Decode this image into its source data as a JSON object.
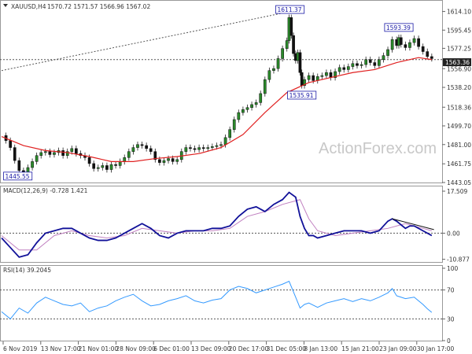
{
  "chart_data": {
    "type": "candlestick-with-indicators",
    "header": {
      "symbol": "XAUUSD,H4",
      "ohlc": "1570.72 1571.57 1566.96 1567.02"
    },
    "watermark": "ActionForex.com",
    "price_panel": {
      "ylim": [
        1443.05,
        1624.0
      ],
      "ticks": [
        1614.1,
        1595.45,
        1577.25,
        1556.9,
        1538.2,
        1518.36,
        1499.7,
        1481.0,
        1461.75,
        1443.05
      ],
      "current_price_label": "1563.36",
      "annotations": [
        {
          "label": "1611.37",
          "x": 0.657,
          "y": 1611.37
        },
        {
          "label": "1593.39",
          "x": 0.905,
          "y": 1593.39
        },
        {
          "label": "1535.91",
          "x": 0.684,
          "y": 1535.91
        },
        {
          "label": "1445.55",
          "x": 0.037,
          "y": 1445.55
        }
      ],
      "trendline": {
        "from": [
          0.0,
          1555.0
        ],
        "to": [
          0.657,
          1614.0
        ]
      },
      "horizontal_level": 1566.0,
      "close_series": [
        [
          0.0,
          1490
        ],
        [
          0.01,
          1485
        ],
        [
          0.02,
          1478
        ],
        [
          0.03,
          1465
        ],
        [
          0.04,
          1455
        ],
        [
          0.05,
          1450
        ],
        [
          0.06,
          1458
        ],
        [
          0.07,
          1464
        ],
        [
          0.08,
          1470
        ],
        [
          0.09,
          1473
        ],
        [
          0.1,
          1474
        ],
        [
          0.11,
          1471
        ],
        [
          0.12,
          1473
        ],
        [
          0.13,
          1475
        ],
        [
          0.14,
          1470
        ],
        [
          0.15,
          1474
        ],
        [
          0.16,
          1477
        ],
        [
          0.17,
          1472
        ],
        [
          0.18,
          1470
        ],
        [
          0.19,
          1468
        ],
        [
          0.2,
          1462
        ],
        [
          0.21,
          1457
        ],
        [
          0.22,
          1458
        ],
        [
          0.23,
          1460
        ],
        [
          0.24,
          1456
        ],
        [
          0.25,
          1461
        ],
        [
          0.26,
          1460
        ],
        [
          0.27,
          1464
        ],
        [
          0.28,
          1468
        ],
        [
          0.29,
          1474
        ],
        [
          0.3,
          1478
        ],
        [
          0.31,
          1481
        ],
        [
          0.32,
          1480
        ],
        [
          0.33,
          1477
        ],
        [
          0.34,
          1474
        ],
        [
          0.35,
          1466
        ],
        [
          0.36,
          1463
        ],
        [
          0.37,
          1465
        ],
        [
          0.38,
          1467
        ],
        [
          0.39,
          1464
        ],
        [
          0.4,
          1466
        ],
        [
          0.41,
          1474
        ],
        [
          0.42,
          1478
        ],
        [
          0.43,
          1477
        ],
        [
          0.44,
          1476
        ],
        [
          0.45,
          1478
        ],
        [
          0.46,
          1477
        ],
        [
          0.47,
          1478
        ],
        [
          0.48,
          1479
        ],
        [
          0.49,
          1480
        ],
        [
          0.5,
          1481
        ],
        [
          0.51,
          1488
        ],
        [
          0.52,
          1496
        ],
        [
          0.53,
          1506
        ],
        [
          0.54,
          1513
        ],
        [
          0.55,
          1516
        ],
        [
          0.56,
          1518
        ],
        [
          0.57,
          1521
        ],
        [
          0.58,
          1523
        ],
        [
          0.59,
          1532
        ],
        [
          0.6,
          1546
        ],
        [
          0.61,
          1555
        ],
        [
          0.62,
          1557
        ],
        [
          0.63,
          1567
        ],
        [
          0.64,
          1577
        ],
        [
          0.65,
          1585
        ],
        [
          0.655,
          1608
        ],
        [
          0.66,
          1590
        ],
        [
          0.665,
          1572
        ],
        [
          0.67,
          1565
        ],
        [
          0.675,
          1573
        ],
        [
          0.68,
          1553
        ],
        [
          0.684,
          1540
        ],
        [
          0.69,
          1546
        ],
        [
          0.7,
          1550
        ],
        [
          0.71,
          1545
        ],
        [
          0.72,
          1549
        ],
        [
          0.73,
          1550
        ],
        [
          0.74,
          1553
        ],
        [
          0.75,
          1548
        ],
        [
          0.76,
          1554
        ],
        [
          0.77,
          1558
        ],
        [
          0.78,
          1556
        ],
        [
          0.79,
          1559
        ],
        [
          0.8,
          1562
        ],
        [
          0.81,
          1560
        ],
        [
          0.82,
          1561
        ],
        [
          0.83,
          1566
        ],
        [
          0.84,
          1563
        ],
        [
          0.85,
          1560
        ],
        [
          0.86,
          1566
        ],
        [
          0.87,
          1570
        ],
        [
          0.88,
          1576
        ],
        [
          0.89,
          1586
        ],
        [
          0.9,
          1580
        ],
        [
          0.905,
          1588
        ],
        [
          0.91,
          1581
        ],
        [
          0.92,
          1578
        ],
        [
          0.93,
          1583
        ],
        [
          0.94,
          1587
        ],
        [
          0.95,
          1579
        ],
        [
          0.96,
          1574
        ],
        [
          0.97,
          1569
        ],
        [
          0.98,
          1567
        ]
      ],
      "sma_series": [
        [
          0.0,
          1489
        ],
        [
          0.05,
          1480
        ],
        [
          0.1,
          1475
        ],
        [
          0.15,
          1473
        ],
        [
          0.2,
          1469
        ],
        [
          0.25,
          1464
        ],
        [
          0.3,
          1464
        ],
        [
          0.35,
          1467
        ],
        [
          0.4,
          1469
        ],
        [
          0.45,
          1472
        ],
        [
          0.5,
          1478
        ],
        [
          0.55,
          1491
        ],
        [
          0.6,
          1513
        ],
        [
          0.65,
          1533
        ],
        [
          0.7,
          1543
        ],
        [
          0.75,
          1548
        ],
        [
          0.8,
          1553
        ],
        [
          0.85,
          1556
        ],
        [
          0.9,
          1563
        ],
        [
          0.95,
          1568
        ],
        [
          0.98,
          1566
        ]
      ]
    },
    "macd_panel": {
      "label": "MACD(12,26,9) -0.728 1.421",
      "ylim": [
        -12.0,
        18.5
      ],
      "ticks": [
        17.509,
        0.0,
        -10.877
      ],
      "macd_series": [
        [
          0.0,
          -2
        ],
        [
          0.02,
          -6
        ],
        [
          0.04,
          -10
        ],
        [
          0.06,
          -9
        ],
        [
          0.08,
          -4
        ],
        [
          0.1,
          0
        ],
        [
          0.12,
          1
        ],
        [
          0.14,
          2
        ],
        [
          0.16,
          2
        ],
        [
          0.18,
          0
        ],
        [
          0.2,
          -2
        ],
        [
          0.22,
          -3
        ],
        [
          0.24,
          -3
        ],
        [
          0.26,
          -2
        ],
        [
          0.28,
          0
        ],
        [
          0.3,
          2
        ],
        [
          0.32,
          4
        ],
        [
          0.34,
          2
        ],
        [
          0.36,
          -1
        ],
        [
          0.38,
          -2
        ],
        [
          0.4,
          0
        ],
        [
          0.42,
          1
        ],
        [
          0.44,
          1
        ],
        [
          0.46,
          1
        ],
        [
          0.48,
          2
        ],
        [
          0.5,
          2
        ],
        [
          0.52,
          3
        ],
        [
          0.54,
          7
        ],
        [
          0.56,
          10
        ],
        [
          0.58,
          11
        ],
        [
          0.6,
          9
        ],
        [
          0.62,
          12
        ],
        [
          0.64,
          14
        ],
        [
          0.655,
          17
        ],
        [
          0.67,
          15
        ],
        [
          0.68,
          7
        ],
        [
          0.69,
          2
        ],
        [
          0.7,
          -1
        ],
        [
          0.71,
          -1
        ],
        [
          0.72,
          -2
        ],
        [
          0.74,
          -1
        ],
        [
          0.76,
          0
        ],
        [
          0.78,
          1
        ],
        [
          0.8,
          1
        ],
        [
          0.82,
          1
        ],
        [
          0.84,
          0
        ],
        [
          0.86,
          1
        ],
        [
          0.88,
          5
        ],
        [
          0.89,
          6
        ],
        [
          0.9,
          5
        ],
        [
          0.92,
          2
        ],
        [
          0.93,
          3
        ],
        [
          0.94,
          3
        ],
        [
          0.96,
          1
        ],
        [
          0.98,
          -1
        ]
      ],
      "signal_series": [
        [
          0.0,
          -1
        ],
        [
          0.04,
          -7
        ],
        [
          0.08,
          -7
        ],
        [
          0.12,
          -1
        ],
        [
          0.16,
          1
        ],
        [
          0.2,
          -1
        ],
        [
          0.24,
          -2
        ],
        [
          0.28,
          -1
        ],
        [
          0.32,
          2
        ],
        [
          0.36,
          1
        ],
        [
          0.4,
          0
        ],
        [
          0.44,
          1
        ],
        [
          0.48,
          1
        ],
        [
          0.52,
          2
        ],
        [
          0.56,
          7
        ],
        [
          0.6,
          9
        ],
        [
          0.64,
          12
        ],
        [
          0.68,
          14
        ],
        [
          0.7,
          6
        ],
        [
          0.72,
          1
        ],
        [
          0.76,
          -1
        ],
        [
          0.8,
          0
        ],
        [
          0.84,
          1
        ],
        [
          0.88,
          2
        ],
        [
          0.92,
          4
        ],
        [
          0.96,
          2
        ],
        [
          0.98,
          1
        ]
      ],
      "trendline": {
        "from": [
          0.89,
          6.0
        ],
        "to": [
          0.985,
          1.5
        ]
      }
    },
    "rsi_panel": {
      "label": "RSI(14) 39.2045",
      "ylim": [
        0,
        100
      ],
      "ticks": [
        100,
        70,
        30,
        0
      ],
      "levels": [
        70,
        30
      ],
      "rsi_series": [
        [
          0.0,
          40
        ],
        [
          0.02,
          30
        ],
        [
          0.04,
          45
        ],
        [
          0.06,
          38
        ],
        [
          0.08,
          52
        ],
        [
          0.1,
          60
        ],
        [
          0.12,
          55
        ],
        [
          0.14,
          50
        ],
        [
          0.16,
          48
        ],
        [
          0.18,
          52
        ],
        [
          0.2,
          40
        ],
        [
          0.22,
          45
        ],
        [
          0.24,
          48
        ],
        [
          0.26,
          55
        ],
        [
          0.28,
          60
        ],
        [
          0.3,
          64
        ],
        [
          0.32,
          55
        ],
        [
          0.34,
          48
        ],
        [
          0.36,
          50
        ],
        [
          0.38,
          55
        ],
        [
          0.4,
          58
        ],
        [
          0.42,
          62
        ],
        [
          0.44,
          55
        ],
        [
          0.46,
          52
        ],
        [
          0.48,
          56
        ],
        [
          0.5,
          58
        ],
        [
          0.52,
          70
        ],
        [
          0.54,
          75
        ],
        [
          0.56,
          72
        ],
        [
          0.58,
          66
        ],
        [
          0.6,
          70
        ],
        [
          0.62,
          74
        ],
        [
          0.64,
          78
        ],
        [
          0.655,
          82
        ],
        [
          0.67,
          60
        ],
        [
          0.68,
          45
        ],
        [
          0.69,
          50
        ],
        [
          0.7,
          52
        ],
        [
          0.72,
          46
        ],
        [
          0.74,
          52
        ],
        [
          0.76,
          55
        ],
        [
          0.78,
          58
        ],
        [
          0.8,
          54
        ],
        [
          0.82,
          58
        ],
        [
          0.84,
          55
        ],
        [
          0.86,
          60
        ],
        [
          0.88,
          66
        ],
        [
          0.89,
          72
        ],
        [
          0.9,
          62
        ],
        [
          0.92,
          58
        ],
        [
          0.94,
          60
        ],
        [
          0.96,
          50
        ],
        [
          0.97,
          44
        ],
        [
          0.98,
          39
        ]
      ]
    },
    "x_labels": [
      "6 Nov 2019",
      "13 Nov 17:00",
      "21 Nov 01:00",
      "28 Nov 09:00",
      "6 Dec 01:00",
      "13 Dec 09:00",
      "20 Dec 17:00",
      "31 Dec 05:00",
      "8 Jan 13:00",
      "15 Jan 21:00",
      "23 Jan 09:00",
      "30 Jan 17:00"
    ],
    "colors": {
      "price_line": "#111111",
      "candle_up": "#2a8a2a",
      "sma": "#e02020",
      "macd": "#111199",
      "signal": "#c080c0",
      "rsi": "#3399ff",
      "dotted": "#555555",
      "annotation": "#1a1aa6",
      "grid": "#dddddd"
    }
  }
}
